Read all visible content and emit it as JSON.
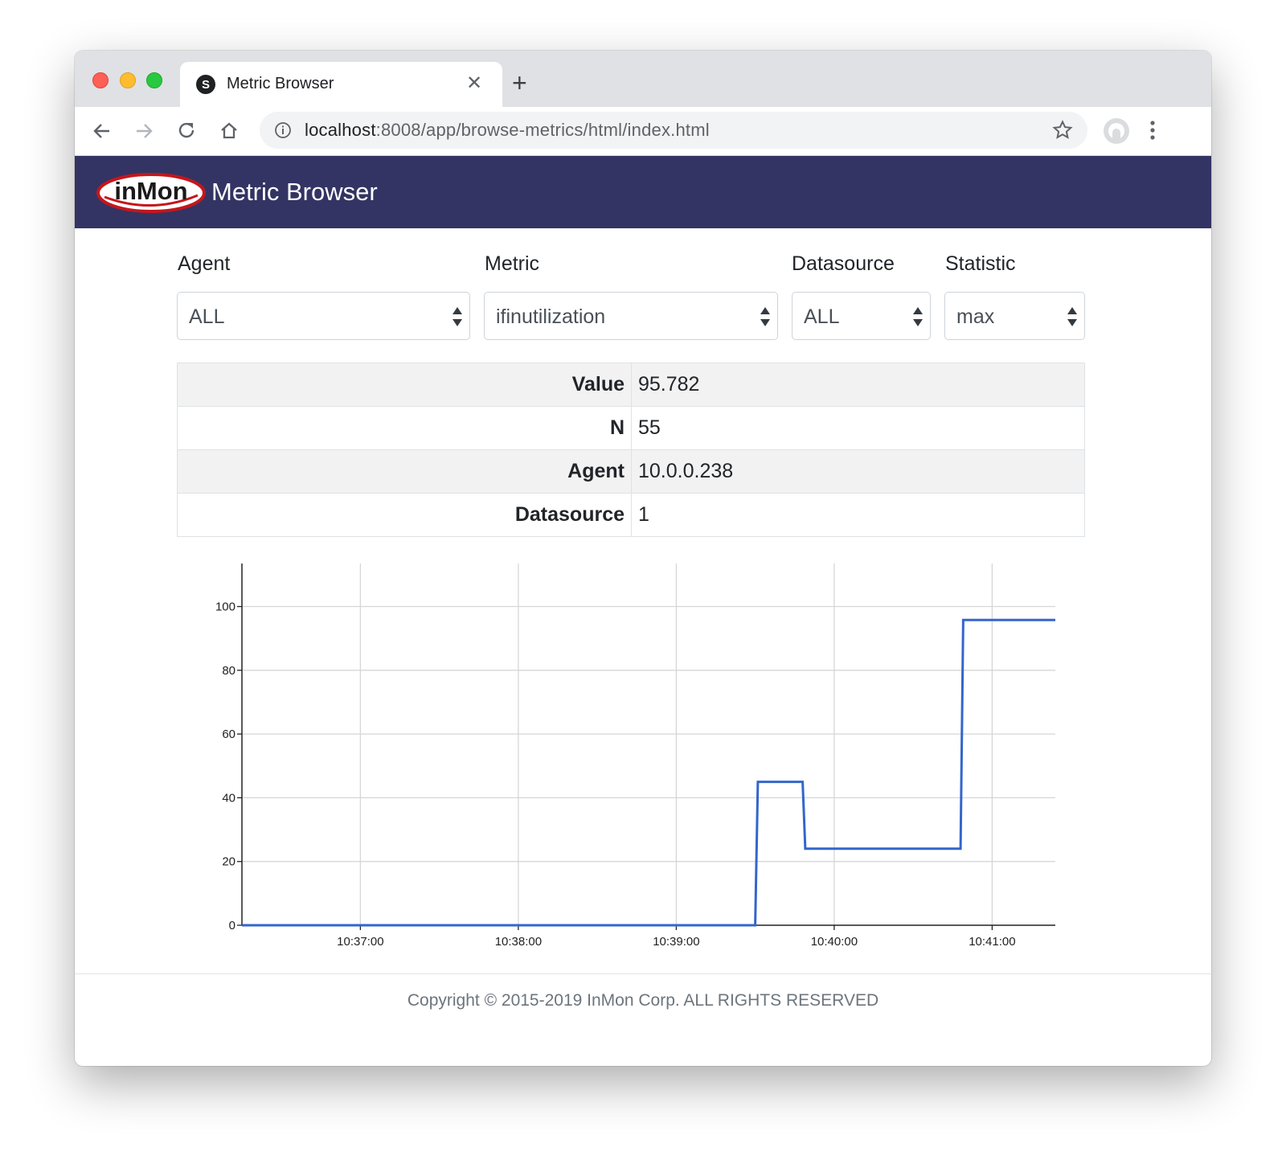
{
  "browser": {
    "tab_title": "Metric Browser",
    "favicon_letter": "S",
    "url_host": "localhost",
    "url_path": ":8008/app/browse-metrics/html/index.html"
  },
  "app": {
    "logo_text": "inMon",
    "title": "Metric Browser"
  },
  "controls": {
    "agent": {
      "label": "Agent",
      "value": "ALL"
    },
    "metric": {
      "label": "Metric",
      "value": "ifinutilization"
    },
    "datasource": {
      "label": "Datasource",
      "value": "ALL"
    },
    "statistic": {
      "label": "Statistic",
      "value": "max"
    }
  },
  "stats": [
    {
      "key": "Value",
      "value": "95.782"
    },
    {
      "key": "N",
      "value": "55"
    },
    {
      "key": "Agent",
      "value": "10.0.0.238"
    },
    {
      "key": "Datasource",
      "value": "1"
    }
  ],
  "chart_data": {
    "type": "line",
    "line_style": "step",
    "series_color": "#3366cc",
    "grid": true,
    "xlim": [
      "10:36:15",
      "10:41:24"
    ],
    "ylim": [
      0,
      113.5
    ],
    "x_ticks": [
      "10:37:00",
      "10:38:00",
      "10:39:00",
      "10:40:00",
      "10:41:00"
    ],
    "y_ticks": [
      0,
      20,
      40,
      60,
      80,
      100
    ],
    "x": [
      "10:36:15",
      "10:39:30",
      "10:39:31",
      "10:39:48",
      "10:39:49",
      "10:40:48",
      "10:40:49",
      "10:41:24"
    ],
    "y": [
      0,
      0,
      45,
      45,
      24,
      24,
      95.782,
      95.782
    ]
  },
  "footer": {
    "copyright": "Copyright © 2015-2019 InMon Corp. ALL RIGHTS RESERVED"
  }
}
